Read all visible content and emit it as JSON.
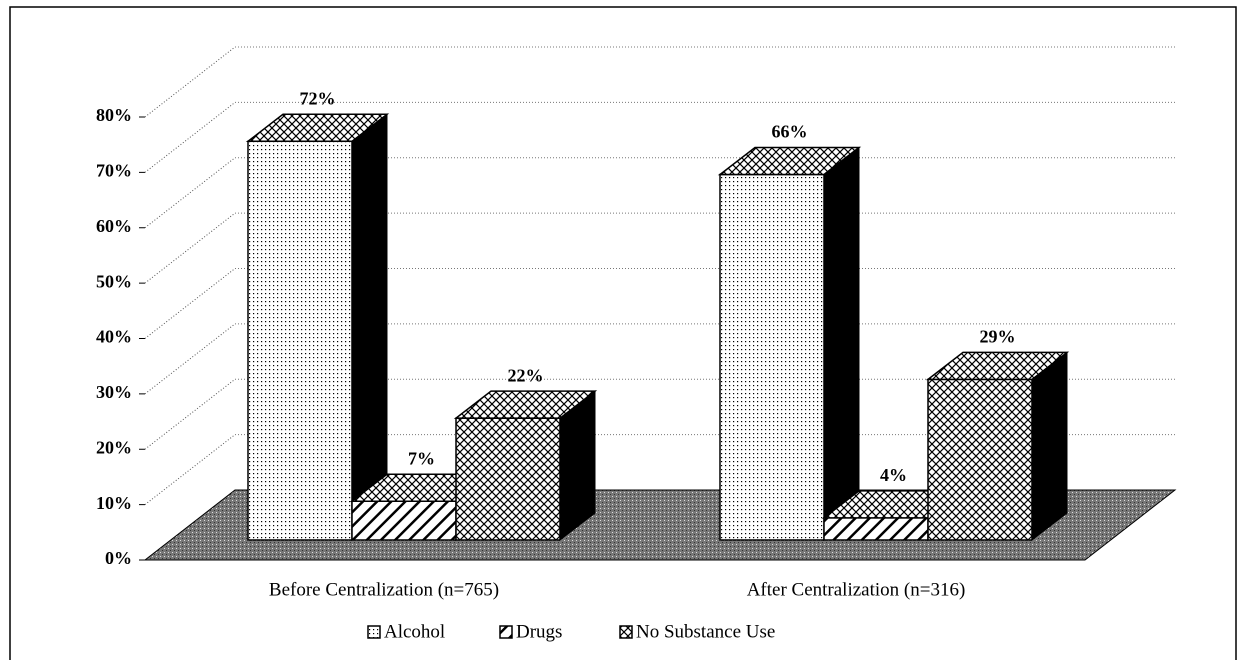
{
  "chart_data": {
    "type": "bar3d",
    "categories": [
      "Before Centralization (n=765)",
      "After Centralization (n=316)"
    ],
    "series": [
      {
        "name": "Alcohol",
        "values": [
          72,
          66
        ],
        "value_labels": [
          "72%",
          "66%"
        ]
      },
      {
        "name": "Drugs",
        "values": [
          7,
          4
        ],
        "value_labels": [
          "7%",
          "4%"
        ]
      },
      {
        "name": "No Substance Use",
        "values": [
          22,
          29
        ],
        "value_labels": [
          "22%",
          "29%"
        ]
      }
    ],
    "ylim": [
      0,
      80
    ],
    "yticks": [
      {
        "value": 0,
        "label": "0%"
      },
      {
        "value": 10,
        "label": "10%"
      },
      {
        "value": 20,
        "label": "20%"
      },
      {
        "value": 30,
        "label": "30%"
      },
      {
        "value": 40,
        "label": "40%"
      },
      {
        "value": 50,
        "label": "50%"
      },
      {
        "value": 60,
        "label": "60%"
      },
      {
        "value": 70,
        "label": "70%"
      },
      {
        "value": 80,
        "label": "80%"
      }
    ],
    "grid": true,
    "legend": "bottom"
  }
}
